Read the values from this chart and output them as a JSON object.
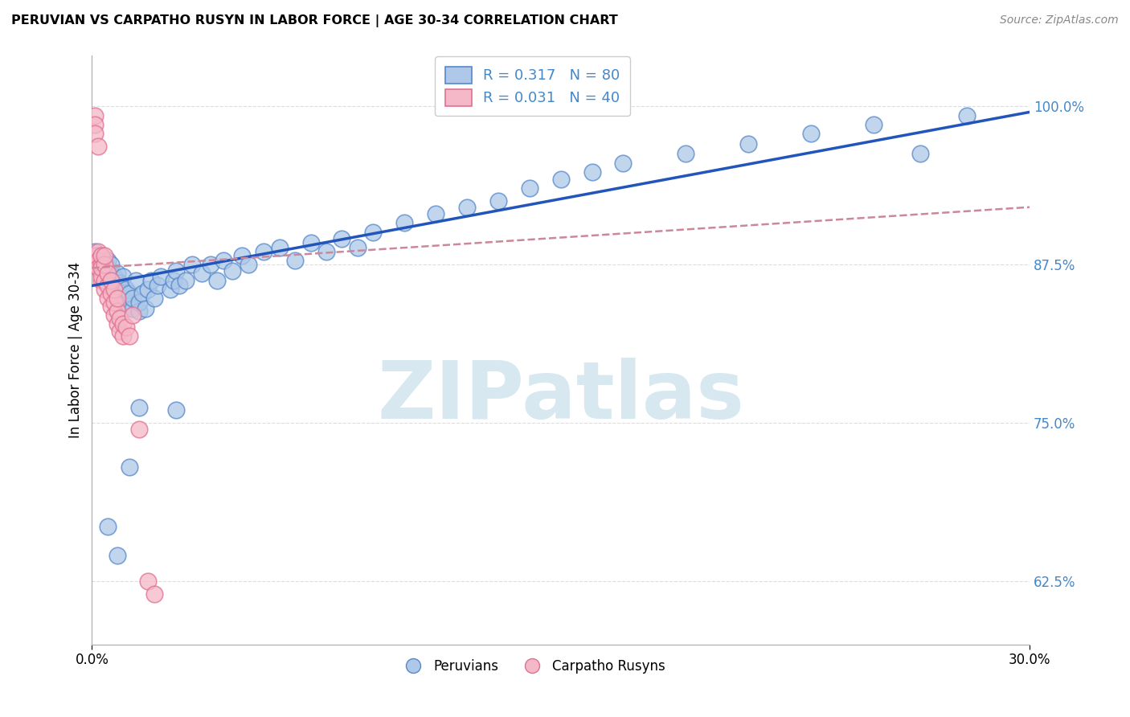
{
  "title": "PERUVIAN VS CARPATHO RUSYN IN LABOR FORCE | AGE 30-34 CORRELATION CHART",
  "source": "Source: ZipAtlas.com",
  "ylabel": "In Labor Force | Age 30-34",
  "ytick_vals": [
    0.625,
    0.75,
    0.875,
    1.0
  ],
  "ytick_labels": [
    "62.5%",
    "75.0%",
    "87.5%",
    "100.0%"
  ],
  "xlim": [
    0.0,
    0.3
  ],
  "ylim": [
    0.575,
    1.04
  ],
  "blue_fill": "#adc8e8",
  "blue_edge": "#5588cc",
  "pink_fill": "#f5b8c8",
  "pink_edge": "#e07090",
  "blue_line_color": "#2255bb",
  "pink_line_color": "#cc8898",
  "watermark_text": "ZIPatlas",
  "watermark_color": "#d8e8f0",
  "grid_color": "#dddddd",
  "ytick_color": "#4488cc",
  "blue_x": [
    0.001,
    0.001,
    0.002,
    0.002,
    0.003,
    0.003,
    0.003,
    0.004,
    0.004,
    0.005,
    0.005,
    0.005,
    0.006,
    0.006,
    0.007,
    0.007,
    0.008,
    0.008,
    0.008,
    0.009,
    0.009,
    0.01,
    0.01,
    0.01,
    0.011,
    0.011,
    0.012,
    0.012,
    0.013,
    0.013,
    0.014,
    0.015,
    0.015,
    0.016,
    0.017,
    0.018,
    0.019,
    0.02,
    0.021,
    0.022,
    0.025,
    0.026,
    0.027,
    0.028,
    0.03,
    0.032,
    0.035,
    0.038,
    0.04,
    0.042,
    0.045,
    0.048,
    0.05,
    0.055,
    0.06,
    0.065,
    0.07,
    0.075,
    0.08,
    0.085,
    0.09,
    0.1,
    0.11,
    0.12,
    0.13,
    0.14,
    0.15,
    0.16,
    0.17,
    0.19,
    0.21,
    0.23,
    0.25,
    0.265,
    0.28,
    0.005,
    0.008,
    0.012,
    0.015,
    0.027
  ],
  "blue_y": [
    0.878,
    0.885,
    0.875,
    0.882,
    0.868,
    0.875,
    0.882,
    0.872,
    0.878,
    0.865,
    0.872,
    0.878,
    0.862,
    0.875,
    0.858,
    0.865,
    0.855,
    0.862,
    0.868,
    0.852,
    0.86,
    0.848,
    0.858,
    0.865,
    0.845,
    0.855,
    0.842,
    0.852,
    0.84,
    0.848,
    0.862,
    0.838,
    0.845,
    0.852,
    0.84,
    0.855,
    0.862,
    0.848,
    0.858,
    0.865,
    0.855,
    0.862,
    0.87,
    0.858,
    0.862,
    0.875,
    0.868,
    0.875,
    0.862,
    0.878,
    0.87,
    0.882,
    0.875,
    0.885,
    0.888,
    0.878,
    0.892,
    0.885,
    0.895,
    0.888,
    0.9,
    0.908,
    0.915,
    0.92,
    0.925,
    0.935,
    0.942,
    0.948,
    0.955,
    0.962,
    0.97,
    0.978,
    0.985,
    0.962,
    0.992,
    0.668,
    0.645,
    0.715,
    0.762,
    0.76
  ],
  "pink_x": [
    0.001,
    0.001,
    0.001,
    0.001,
    0.001,
    0.002,
    0.002,
    0.002,
    0.002,
    0.003,
    0.003,
    0.003,
    0.003,
    0.003,
    0.004,
    0.004,
    0.004,
    0.004,
    0.005,
    0.005,
    0.005,
    0.006,
    0.006,
    0.006,
    0.007,
    0.007,
    0.007,
    0.008,
    0.008,
    0.008,
    0.009,
    0.009,
    0.01,
    0.01,
    0.011,
    0.012,
    0.013,
    0.015,
    0.018,
    0.02
  ],
  "pink_y": [
    0.992,
    0.985,
    0.978,
    0.882,
    0.875,
    0.968,
    0.885,
    0.878,
    0.872,
    0.862,
    0.875,
    0.882,
    0.865,
    0.872,
    0.855,
    0.862,
    0.875,
    0.882,
    0.848,
    0.858,
    0.868,
    0.842,
    0.852,
    0.862,
    0.835,
    0.845,
    0.855,
    0.828,
    0.838,
    0.848,
    0.822,
    0.832,
    0.818,
    0.828,
    0.825,
    0.818,
    0.835,
    0.745,
    0.625,
    0.615
  ],
  "blue_trend_x": [
    0.0,
    0.3
  ],
  "blue_trend_y": [
    0.858,
    0.995
  ],
  "pink_trend_x": [
    0.0,
    0.3
  ],
  "pink_trend_y": [
    0.872,
    0.92
  ]
}
